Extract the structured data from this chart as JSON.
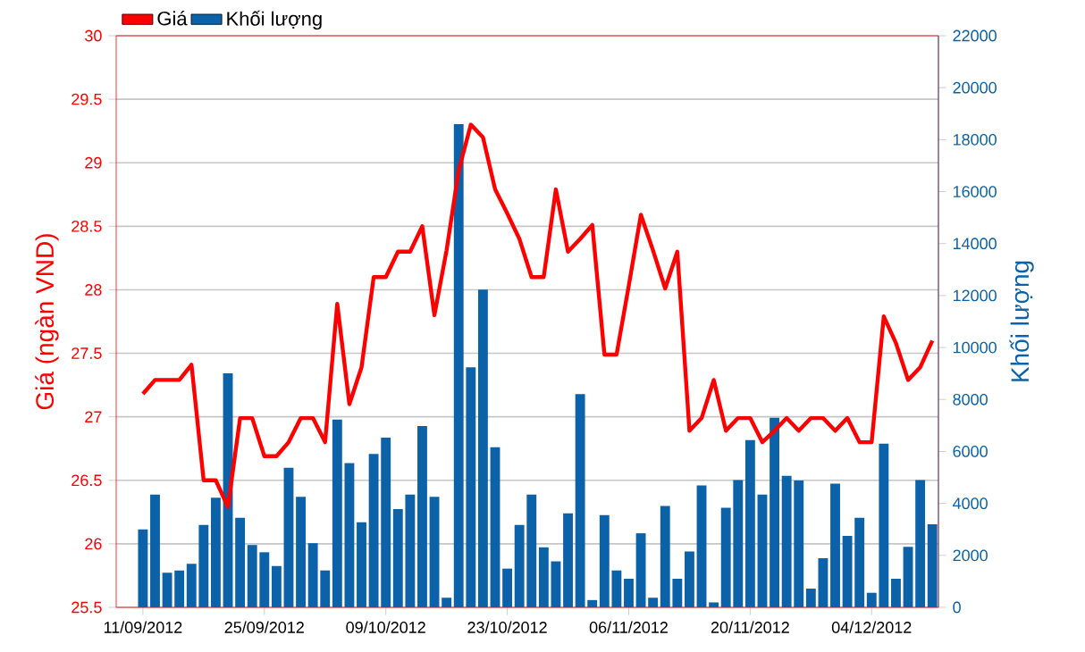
{
  "chart_data": {
    "type": "line",
    "categories": [
      "11/09/2012",
      null,
      null,
      null,
      null,
      null,
      null,
      null,
      null,
      null,
      "25/09/2012",
      null,
      null,
      null,
      null,
      null,
      null,
      null,
      null,
      null,
      "09/10/2012",
      null,
      null,
      null,
      null,
      null,
      null,
      null,
      null,
      null,
      "23/10/2012",
      null,
      null,
      null,
      null,
      null,
      null,
      null,
      null,
      null,
      "06/11/2012",
      null,
      null,
      null,
      null,
      null,
      null,
      null,
      null,
      null,
      "20/11/2012",
      null,
      null,
      null,
      null,
      null,
      null,
      null,
      null,
      null,
      "04/12/2012",
      null,
      null,
      null,
      null,
      null
    ],
    "series": [
      {
        "name": "Giá",
        "color": "#ff0000",
        "values": [
          27.18,
          27.29,
          27.29,
          27.29,
          27.41,
          26.5,
          26.5,
          26.29,
          26.99,
          26.99,
          26.69,
          26.69,
          26.8,
          26.99,
          26.99,
          26.8,
          27.89,
          27.1,
          27.39,
          28.1,
          28.1,
          28.3,
          28.3,
          28.5,
          27.8,
          28.31,
          28.94,
          29.3,
          29.2,
          28.79,
          28.6,
          28.4,
          28.1,
          28.1,
          28.79,
          28.3,
          28.4,
          28.51,
          27.49,
          27.49,
          28.03,
          28.59,
          28.31,
          28.01,
          28.3,
          26.89,
          26.99,
          27.29,
          26.89,
          26.99,
          26.99,
          26.8,
          26.89,
          26.99,
          26.89,
          26.99,
          26.99,
          26.89,
          26.99,
          26.8,
          26.8,
          27.79,
          27.58,
          27.29,
          27.39,
          27.6
        ]
      },
      {
        "name": "Khối lượng",
        "type": "bar",
        "axis": "y2",
        "color": "#0b62a8",
        "values": [
          3000,
          4340,
          1330,
          1420,
          1680,
          3170,
          4220,
          9010,
          3450,
          2400,
          2120,
          1590,
          5370,
          4250,
          2470,
          1420,
          7230,
          5550,
          3270,
          5900,
          6530,
          3780,
          4340,
          6980,
          4250,
          370,
          18600,
          9240,
          12230,
          6160,
          1490,
          3170,
          4340,
          2310,
          1770,
          3620,
          8210,
          280,
          3550,
          1420,
          1100,
          2850,
          370,
          3900,
          1100,
          2150,
          4690,
          190,
          3830,
          4900,
          6440,
          4340,
          7300,
          5060,
          4880,
          720,
          1890,
          4760,
          2750,
          3450,
          560,
          6300,
          1100,
          2330,
          4900,
          3200
        ]
      }
    ],
    "ylabel": "Giá (ngàn VND)",
    "y2label": "Khối lượng",
    "ylim": [
      25.5,
      30
    ],
    "yticks": [
      25.5,
      26,
      26.5,
      27,
      27.5,
      28,
      28.5,
      29,
      29.5,
      30
    ],
    "y2lim": [
      0,
      22000
    ],
    "y2ticks": [
      0,
      2000,
      4000,
      6000,
      8000,
      10000,
      12000,
      14000,
      16000,
      18000,
      20000,
      22000
    ],
    "grid": "y",
    "legend": "top left"
  }
}
